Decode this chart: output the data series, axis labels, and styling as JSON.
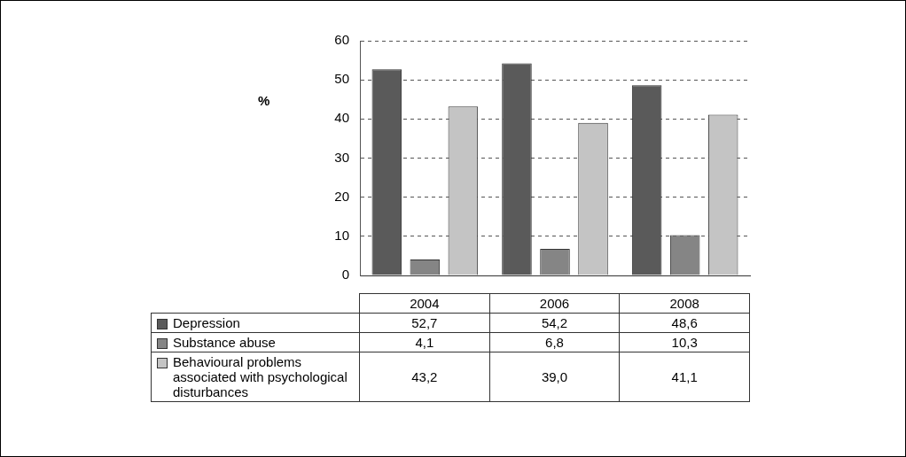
{
  "chart_data": {
    "type": "bar",
    "ylabel": "%",
    "categories": [
      "2004",
      "2006",
      "2008"
    ],
    "series": [
      {
        "name": "Depression",
        "color": "#5a5a5a",
        "values": [
          52.7,
          54.2,
          48.6
        ],
        "value_labels": [
          "52,7",
          "54,2",
          "48,6"
        ]
      },
      {
        "name": "Substance abuse",
        "color": "#858585",
        "values": [
          4.1,
          6.8,
          10.3
        ],
        "value_labels": [
          "4,1",
          "6,8",
          "10,3"
        ]
      },
      {
        "name": "Behavioural problems associated with psychological disturbances",
        "color": "#c4c4c4",
        "values": [
          43.2,
          39.0,
          41.1
        ],
        "value_labels": [
          "43,2",
          "39,0",
          "41,1"
        ]
      }
    ],
    "ylim": [
      0,
      60
    ],
    "yticks": [
      0,
      10,
      20,
      30,
      40,
      50,
      60
    ],
    "grid": "y",
    "legend": "bottom"
  }
}
